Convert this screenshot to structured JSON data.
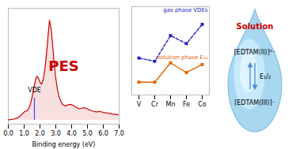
{
  "chart_data": [
    {
      "type": "line",
      "xlabel": "Binding energy (eV)",
      "x": [
        0.0,
        0.1,
        0.2,
        0.3,
        0.4,
        0.5,
        0.6,
        0.7,
        0.8,
        0.9,
        1.0,
        1.1,
        1.2,
        1.3,
        1.4,
        1.5,
        1.6,
        1.7,
        1.8,
        1.9,
        2.0,
        2.1,
        2.2,
        2.3,
        2.4,
        2.5,
        2.6,
        2.7,
        2.8,
        2.9,
        3.0,
        3.1,
        3.2,
        3.3,
        3.4,
        3.5,
        3.6,
        3.7,
        3.8,
        3.9,
        4.0,
        4.1,
        4.2,
        4.3,
        4.4,
        4.5,
        4.6,
        4.7,
        4.8,
        4.9,
        5.0,
        5.1,
        5.2,
        5.3,
        5.4,
        5.5,
        5.6,
        5.7,
        5.8,
        5.9,
        6.0,
        6.1,
        6.2,
        6.3,
        6.4,
        6.5,
        6.6,
        6.7,
        6.8,
        6.9,
        7.0
      ],
      "values": [
        0.005,
        0.005,
        0.008,
        0.01,
        0.013,
        0.018,
        0.025,
        0.035,
        0.05,
        0.065,
        0.082,
        0.09,
        0.095,
        0.12,
        0.165,
        0.23,
        0.31,
        0.39,
        0.44,
        0.42,
        0.38,
        0.36,
        0.4,
        0.5,
        0.64,
        0.82,
        1.0,
        0.92,
        0.75,
        0.57,
        0.42,
        0.31,
        0.24,
        0.195,
        0.165,
        0.15,
        0.145,
        0.148,
        0.155,
        0.158,
        0.155,
        0.148,
        0.138,
        0.128,
        0.118,
        0.115,
        0.118,
        0.122,
        0.125,
        0.12,
        0.112,
        0.105,
        0.098,
        0.092,
        0.088,
        0.085,
        0.083,
        0.085,
        0.088,
        0.082,
        0.078,
        0.075,
        0.073,
        0.07,
        0.068,
        0.065,
        0.062,
        0.06,
        0.058,
        0.055,
        0.052
      ],
      "color": "#cc0000",
      "xlim": [
        0,
        7
      ],
      "xticks": [
        0,
        1,
        2,
        3,
        4,
        5,
        6,
        7
      ],
      "ylim": [
        -0.04,
        1.12
      ],
      "tick_labels": "x",
      "vlines": [
        {
          "x": 1.65,
          "ymin": 0,
          "ymax": 0.22,
          "color": "#4444ff",
          "label": "VDE"
        }
      ],
      "annotations": [
        {
          "text": "PES",
          "color": "#cc0000"
        }
      ]
    },
    {
      "type": "line",
      "categories": [
        "V",
        "Cr",
        "Mn",
        "Fe",
        "Co"
      ],
      "series": [
        {
          "name": "solution phase E₁₂",
          "color": "#dd6600",
          "values": [
            1.3,
            1.3,
            2.5,
            1.9,
            2.4
          ],
          "line_style": "solid",
          "marker": "square"
        },
        {
          "name": "gas phase VDEs",
          "color": "#2222bb",
          "values": [
            2.8,
            2.6,
            4.2,
            3.7,
            4.9
          ],
          "line_style": "dashed",
          "marker": "square"
        }
      ],
      "ylim": [
        0.5,
        6.0
      ],
      "tick_labels": "x",
      "annotations": [
        {
          "text": "Solution",
          "color": "#cc0000"
        },
        {
          "text": "[EDTAM(II)]²⁻"
        },
        {
          "text": "E₁/₂"
        },
        {
          "text": "[EDTAM(III)]⁻"
        }
      ]
    }
  ]
}
